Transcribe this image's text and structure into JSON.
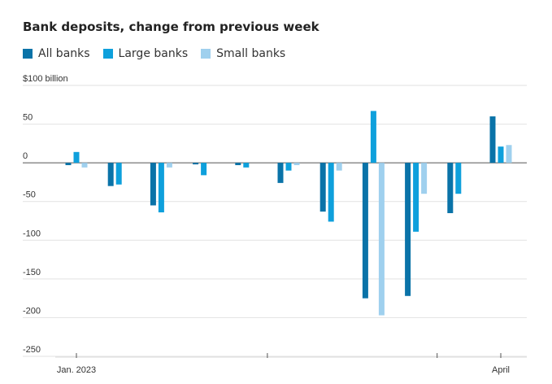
{
  "chart_data": {
    "type": "bar",
    "title": "Bank deposits, change from previous week",
    "y_unit_label": "$100 billion",
    "ylim": [
      -250,
      100
    ],
    "yticks": [
      100,
      50,
      0,
      -50,
      -100,
      -150,
      -200,
      -250
    ],
    "ytick_labels": [
      "$100 billion",
      "50",
      "0",
      "-50",
      "-100",
      "-150",
      "-200",
      "-250"
    ],
    "x_tick_labels": [
      {
        "label": "Jan. 2023",
        "week_index": 0
      },
      {
        "label": "",
        "week_index": 4.5
      },
      {
        "label": "",
        "week_index": 8.5
      },
      {
        "label": "April",
        "week_index": 10
      }
    ],
    "grid": true,
    "legend_position": "top-left",
    "series": [
      {
        "name": "All banks",
        "color": "#0a73a8",
        "values": [
          -3,
          -30,
          -55,
          -2,
          -3,
          -26,
          -63,
          -175,
          -172,
          -65,
          60
        ]
      },
      {
        "name": "Large banks",
        "color": "#0ea0dc",
        "values": [
          14,
          -28,
          -64,
          -16,
          -6,
          -10,
          -76,
          67,
          -89,
          -40,
          21
        ]
      },
      {
        "name": "Small banks",
        "color": "#9fd0ee",
        "values": [
          -6,
          0,
          -6,
          0,
          0,
          -3,
          -10,
          -197,
          -40,
          0,
          23
        ]
      }
    ]
  }
}
